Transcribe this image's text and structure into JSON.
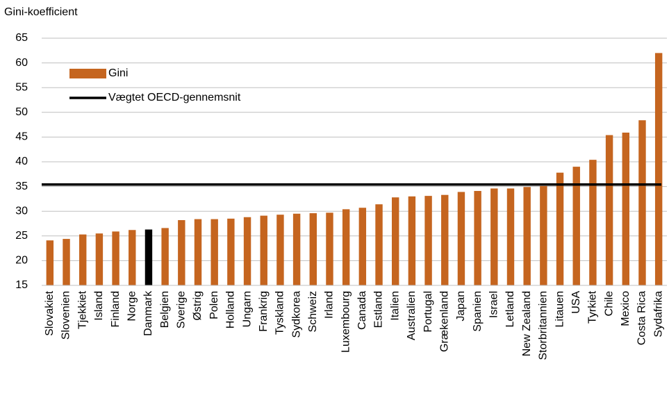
{
  "chart_data": {
    "type": "bar",
    "y_label": "Gini-koefficient",
    "categories": [
      "Slovakiet",
      "Slovenien",
      "Tjekkiet",
      "Island",
      "Finland",
      "Norge",
      "Danmark",
      "Belgien",
      "Sverige",
      "Østrig",
      "Polen",
      "Holland",
      "Ungarn",
      "Frankrig",
      "Tyskland",
      "Sydkorea",
      "Schweiz",
      "Irland",
      "Luxembourg",
      "Canada",
      "Estland",
      "Italien",
      "Australien",
      "Portugal",
      "Grækenland",
      "Japan",
      "Spanien",
      "Israel",
      "Letland",
      "New Zealand",
      "Storbritannien",
      "Litauen",
      "USA",
      "Tyrkiet",
      "Chile",
      "Mexico",
      "Costa Rica",
      "Sydafrika"
    ],
    "series": [
      {
        "name": "Gini",
        "color": "#c5651f",
        "colors": [
          "#c5651f",
          "#c5651f",
          "#c5651f",
          "#c5651f",
          "#c5651f",
          "#c5651f",
          "#000000",
          "#c5651f",
          "#c5651f",
          "#c5651f",
          "#c5651f",
          "#c5651f",
          "#c5651f",
          "#c5651f",
          "#c5651f",
          "#c5651f",
          "#c5651f",
          "#c5651f",
          "#c5651f",
          "#c5651f",
          "#c5651f",
          "#c5651f",
          "#c5651f",
          "#c5651f",
          "#c5651f",
          "#c5651f",
          "#c5651f",
          "#c5651f",
          "#c5651f",
          "#c5651f",
          "#c5651f",
          "#c5651f",
          "#c5651f",
          "#c5651f",
          "#c5651f",
          "#c5651f",
          "#c5651f",
          "#c5651f"
        ],
        "values": [
          24.1,
          24.4,
          25.3,
          25.5,
          25.9,
          26.2,
          26.3,
          26.6,
          28.2,
          28.4,
          28.4,
          28.5,
          28.8,
          29.1,
          29.3,
          29.5,
          29.6,
          29.7,
          30.4,
          30.7,
          31.4,
          32.8,
          33.0,
          33.1,
          33.3,
          33.9,
          34.1,
          34.6,
          34.6,
          34.9,
          35.1,
          37.8,
          39.0,
          40.4,
          45.4,
          45.9,
          48.4,
          62.0
        ]
      }
    ],
    "reference_lines": [
      {
        "name": "Vægtet OECD-gennemsnit",
        "value": 35.4,
        "color": "#000000"
      }
    ],
    "ylim": [
      15,
      65
    ],
    "yticks": [
      15,
      20,
      25,
      30,
      35,
      40,
      45,
      50,
      55,
      60,
      65
    ],
    "grid": true
  }
}
